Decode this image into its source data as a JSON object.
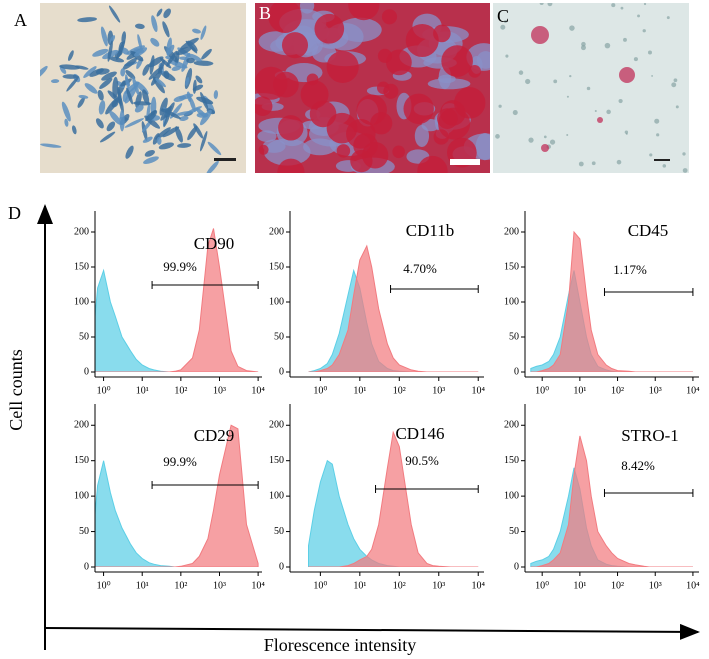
{
  "figure": {
    "labels": [
      "A",
      "B",
      "C",
      "D"
    ],
    "ylabel": "Cell counts",
    "xlabel": "Florescence intensity"
  },
  "chart_data": [
    {
      "type": "area",
      "title": "CD90",
      "annotation": "99.9%",
      "gate": [
        18,
        10000
      ],
      "xscale": "log",
      "x": [
        0.5,
        0.7,
        1,
        1.5,
        2,
        3,
        5,
        7,
        10,
        15,
        20,
        30,
        50,
        70,
        100,
        200,
        300,
        500,
        700,
        1000,
        2000,
        3000,
        5000,
        10000
      ],
      "xlim": [
        0.6,
        12600
      ],
      "xticks": [
        {
          "value": 1,
          "label": "10⁰"
        },
        {
          "value": 10,
          "label": "10¹"
        },
        {
          "value": 100,
          "label": "10²"
        },
        {
          "value": 1000,
          "label": "10³"
        },
        {
          "value": 10000,
          "label": "10⁴"
        }
      ],
      "ylim": [
        0,
        230
      ],
      "yticks": [
        0,
        50,
        100,
        150,
        200
      ],
      "series": [
        {
          "color": "#5ccfe6",
          "values": [
            30,
            120,
            145,
            100,
            80,
            50,
            30,
            18,
            10,
            5,
            3,
            1,
            0,
            0,
            0,
            0,
            0,
            0,
            0,
            0,
            0,
            0,
            0,
            0
          ]
        },
        {
          "color": "#f27b80",
          "values": [
            0,
            0,
            0,
            0,
            0,
            0,
            0,
            0,
            0,
            0,
            0,
            0,
            0,
            1,
            3,
            20,
            60,
            180,
            205,
            150,
            30,
            8,
            2,
            0
          ]
        }
      ]
    },
    {
      "type": "area",
      "title": "CD11b",
      "annotation": "4.70%",
      "gate": [
        60,
        10000
      ],
      "xscale": "log",
      "x": [
        0.5,
        0.7,
        1,
        1.5,
        2,
        3,
        5,
        7,
        10,
        15,
        20,
        30,
        50,
        70,
        100,
        200,
        300,
        500,
        700,
        1000,
        2000,
        3000,
        5000,
        10000
      ],
      "xlim": [
        0.17,
        14000
      ],
      "xticks": [
        {
          "value": 1,
          "label": "10⁰"
        },
        {
          "value": 10,
          "label": "10¹"
        },
        {
          "value": 100,
          "label": "10²"
        },
        {
          "value": 1000,
          "label": "10³"
        },
        {
          "value": 10000,
          "label": "10⁴"
        }
      ],
      "ylim": [
        0,
        230
      ],
      "yticks": [
        0,
        50,
        100,
        150,
        200
      ],
      "series": [
        {
          "color": "#5ccfe6",
          "values": [
            0,
            2,
            5,
            12,
            25,
            55,
            110,
            145,
            120,
            70,
            40,
            15,
            5,
            2,
            1,
            0,
            0,
            0,
            0,
            0,
            0,
            0,
            0,
            0
          ]
        },
        {
          "color": "#f27b80",
          "values": [
            0,
            0,
            2,
            5,
            10,
            25,
            60,
            110,
            160,
            180,
            150,
            90,
            40,
            20,
            10,
            3,
            1,
            0,
            0,
            0,
            0,
            0,
            0,
            0
          ]
        }
      ]
    },
    {
      "type": "area",
      "title": "CD45",
      "annotation": "1.17%",
      "gate": [
        45,
        10000
      ],
      "xscale": "log",
      "x": [
        0.5,
        0.7,
        1,
        1.5,
        2,
        3,
        5,
        7,
        10,
        15,
        20,
        30,
        50,
        70,
        100,
        200,
        300,
        500,
        700,
        1000,
        2000,
        3000,
        5000,
        10000
      ],
      "xlim": [
        0.35,
        14500
      ],
      "xticks": [
        {
          "value": 1,
          "label": "10⁰"
        },
        {
          "value": 10,
          "label": "10¹"
        },
        {
          "value": 100,
          "label": "10²"
        },
        {
          "value": 1000,
          "label": "10³"
        },
        {
          "value": 10000,
          "label": "10⁴"
        }
      ],
      "ylim": [
        0,
        230
      ],
      "yticks": [
        0,
        50,
        100,
        150,
        200
      ],
      "series": [
        {
          "color": "#5ccfe6",
          "values": [
            5,
            8,
            10,
            15,
            25,
            50,
            110,
            145,
            100,
            50,
            25,
            8,
            3,
            1,
            0,
            0,
            0,
            0,
            0,
            0,
            0,
            0,
            0,
            0
          ]
        },
        {
          "color": "#f27b80",
          "values": [
            0,
            0,
            2,
            5,
            10,
            25,
            100,
            200,
            190,
            110,
            60,
            25,
            10,
            5,
            2,
            1,
            0,
            0,
            0,
            0,
            0,
            0,
            0,
            0
          ]
        }
      ]
    },
    {
      "type": "area",
      "title": "CD29",
      "annotation": "99.9%",
      "gate": [
        18,
        10000
      ],
      "xscale": "log",
      "x": [
        0.5,
        0.7,
        1,
        1.5,
        2,
        3,
        5,
        7,
        10,
        15,
        20,
        30,
        50,
        70,
        100,
        200,
        300,
        500,
        700,
        1000,
        2000,
        3000,
        5000,
        10000
      ],
      "xlim": [
        0.6,
        12600
      ],
      "xticks": [
        {
          "value": 1,
          "label": "10⁰"
        },
        {
          "value": 10,
          "label": "10¹"
        },
        {
          "value": 100,
          "label": "10²"
        },
        {
          "value": 1000,
          "label": "10³"
        },
        {
          "value": 10000,
          "label": "10⁴"
        }
      ],
      "ylim": [
        0,
        230
      ],
      "yticks": [
        0,
        50,
        100,
        150,
        200
      ],
      "series": [
        {
          "color": "#5ccfe6",
          "values": [
            25,
            115,
            150,
            105,
            80,
            55,
            32,
            20,
            12,
            6,
            4,
            2,
            1,
            0,
            0,
            0,
            0,
            0,
            0,
            0,
            0,
            0,
            0,
            0
          ]
        },
        {
          "color": "#f27b80",
          "values": [
            0,
            0,
            0,
            0,
            0,
            0,
            0,
            0,
            0,
            0,
            0,
            0,
            0,
            0,
            1,
            5,
            15,
            40,
            80,
            130,
            200,
            195,
            60,
            5
          ]
        }
      ]
    },
    {
      "type": "area",
      "title": "CD146",
      "annotation": "90.5%",
      "gate": [
        25,
        10000
      ],
      "xscale": "log",
      "x": [
        0.5,
        0.7,
        1,
        1.5,
        2,
        3,
        5,
        7,
        10,
        15,
        20,
        30,
        50,
        70,
        100,
        200,
        300,
        500,
        700,
        1000,
        2000,
        3000,
        5000,
        10000
      ],
      "xlim": [
        0.17,
        14000
      ],
      "xticks": [
        {
          "value": 1,
          "label": "10⁰"
        },
        {
          "value": 10,
          "label": "10¹"
        },
        {
          "value": 100,
          "label": "10²"
        },
        {
          "value": 1000,
          "label": "10³"
        },
        {
          "value": 10000,
          "label": "10⁴"
        }
      ],
      "ylim": [
        0,
        230
      ],
      "yticks": [
        0,
        50,
        100,
        150,
        200
      ],
      "series": [
        {
          "color": "#5ccfe6",
          "values": [
            30,
            80,
            120,
            150,
            145,
            100,
            60,
            40,
            25,
            15,
            10,
            5,
            2,
            1,
            0,
            0,
            0,
            0,
            0,
            0,
            0,
            0,
            0,
            0
          ]
        },
        {
          "color": "#f27b80",
          "values": [
            0,
            0,
            0,
            0,
            0,
            0,
            2,
            5,
            10,
            15,
            25,
            60,
            140,
            190,
            170,
            60,
            20,
            5,
            2,
            1,
            0,
            0,
            0,
            0
          ]
        }
      ]
    },
    {
      "type": "area",
      "title": "STRO-1",
      "annotation": "8.42%",
      "gate": [
        45,
        10000
      ],
      "xscale": "log",
      "x": [
        0.5,
        0.7,
        1,
        1.5,
        2,
        3,
        5,
        7,
        10,
        15,
        20,
        30,
        50,
        70,
        100,
        200,
        300,
        500,
        700,
        1000,
        2000,
        3000,
        5000,
        10000
      ],
      "xlim": [
        0.35,
        14500
      ],
      "xticks": [
        {
          "value": 1,
          "label": "10⁰"
        },
        {
          "value": 10,
          "label": "10¹"
        },
        {
          "value": 100,
          "label": "10²"
        },
        {
          "value": 1000,
          "label": "10³"
        },
        {
          "value": 10000,
          "label": "10⁴"
        }
      ],
      "ylim": [
        0,
        230
      ],
      "yticks": [
        0,
        50,
        100,
        150,
        200
      ],
      "series": [
        {
          "color": "#5ccfe6",
          "values": [
            5,
            8,
            10,
            15,
            25,
            50,
            100,
            140,
            110,
            55,
            30,
            10,
            4,
            2,
            1,
            0,
            0,
            0,
            0,
            0,
            0,
            0,
            0,
            0
          ]
        },
        {
          "color": "#f27b80",
          "values": [
            0,
            0,
            2,
            5,
            10,
            20,
            60,
            130,
            185,
            150,
            100,
            50,
            30,
            20,
            12,
            5,
            3,
            1,
            0,
            0,
            0,
            0,
            0,
            0
          ]
        }
      ]
    }
  ]
}
